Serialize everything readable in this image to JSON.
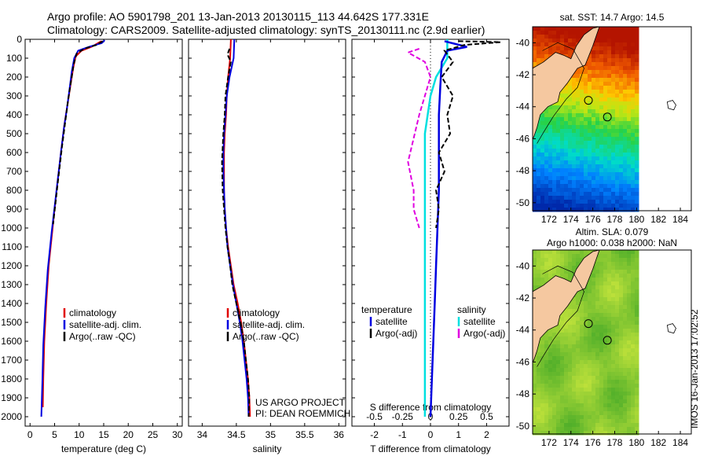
{
  "header": {
    "line1": "Argo profile: AO 5901798_201 13-Jan-2013 20130115_113 44.642S 177.331E",
    "line2": "Climatology: CARS2009. Satellite-adjusted climatology: synTS_20130111.nc (2.9d earlier)"
  },
  "colors": {
    "climatology": "#e00000",
    "satellite": "#0000e0",
    "argo": "#000000",
    "salinity_satellite": "#00e0e0",
    "salinity_argo": "#e000e0",
    "land": "#f5c8a0"
  },
  "chart_data": [
    {
      "type": "line",
      "xlabel": "temperature (deg C)",
      "ylabel": "",
      "xlim": [
        -1,
        31
      ],
      "ylim": [
        2050,
        0
      ],
      "xticks": [
        "0",
        "5",
        "10",
        "15",
        "20",
        "25",
        "30"
      ],
      "yticks": [
        "0",
        "100",
        "200",
        "300",
        "400",
        "500",
        "600",
        "700",
        "800",
        "900",
        "1000",
        "1100",
        "1200",
        "1300",
        "1400",
        "1500",
        "1600",
        "1700",
        "1800",
        "1900",
        "2000"
      ],
      "legend": {
        "placement": "lower-center",
        "entries": [
          "climatology",
          "satellite-adj. clim.",
          "Argo(..raw -QC)"
        ]
      },
      "series": [
        {
          "name": "climatology",
          "points": [
            [
              14.5,
              10
            ],
            [
              12.5,
              40
            ],
            [
              10.5,
              60
            ],
            [
              9.3,
              90
            ],
            [
              8.8,
              150
            ],
            [
              8.2,
              250
            ],
            [
              7.6,
              350
            ],
            [
              7.0,
              450
            ],
            [
              6.3,
              600
            ],
            [
              5.4,
              800
            ],
            [
              4.6,
              1000
            ],
            [
              3.8,
              1200
            ],
            [
              3.3,
              1400
            ],
            [
              2.9,
              1600
            ],
            [
              2.7,
              1800
            ],
            [
              2.6,
              1950
            ]
          ]
        },
        {
          "name": "satellite-adj. clim.",
          "points": [
            [
              15.2,
              5
            ],
            [
              14.6,
              20
            ],
            [
              12.0,
              40
            ],
            [
              9.8,
              60
            ],
            [
              9.0,
              100
            ],
            [
              8.5,
              170
            ],
            [
              8.0,
              270
            ],
            [
              7.5,
              370
            ],
            [
              6.9,
              470
            ],
            [
              6.2,
              620
            ],
            [
              5.3,
              820
            ],
            [
              4.4,
              1020
            ],
            [
              3.6,
              1220
            ],
            [
              3.1,
              1420
            ],
            [
              2.7,
              1620
            ],
            [
              2.5,
              1820
            ],
            [
              2.3,
              2000
            ]
          ]
        },
        {
          "name": "Argo(..raw -QC)",
          "points": [
            [
              14.8,
              10
            ],
            [
              13.5,
              30
            ],
            [
              11.0,
              50
            ],
            [
              9.5,
              75
            ],
            [
              8.9,
              130
            ],
            [
              8.3,
              230
            ],
            [
              7.7,
              330
            ],
            [
              7.2,
              430
            ],
            [
              6.5,
              570
            ],
            [
              5.6,
              770
            ],
            [
              4.7,
              980
            ]
          ]
        }
      ]
    },
    {
      "type": "line",
      "xlabel": "salinity",
      "ylabel": "",
      "xlim": [
        33.8,
        36.1
      ],
      "ylim": [
        2050,
        0
      ],
      "xticks": [
        "34",
        "34.5",
        "35",
        "35.5",
        "36"
      ],
      "legend": {
        "placement": "lower-center",
        "entries": [
          "climatology",
          "satellite-adj. clim.",
          "Argo(..raw -QC)"
        ]
      },
      "annotation": [
        "US ARGO PROJECT",
        "PI: DEAN ROEMMICH"
      ],
      "series": [
        {
          "name": "climatology",
          "points": [
            [
              34.42,
              0
            ],
            [
              34.41,
              100
            ],
            [
              34.38,
              200
            ],
            [
              34.36,
              300
            ],
            [
              34.35,
              400
            ],
            [
              34.33,
              500
            ],
            [
              34.32,
              600
            ],
            [
              34.32,
              700
            ],
            [
              34.32,
              800
            ],
            [
              34.33,
              900
            ],
            [
              34.35,
              1000
            ],
            [
              34.38,
              1100
            ],
            [
              34.42,
              1200
            ],
            [
              34.46,
              1300
            ],
            [
              34.52,
              1400
            ],
            [
              34.57,
              1500
            ],
            [
              34.61,
              1600
            ],
            [
              34.64,
              1700
            ],
            [
              34.67,
              1800
            ],
            [
              34.69,
              1900
            ],
            [
              34.7,
              2000
            ]
          ]
        },
        {
          "name": "satellite-adj. clim.",
          "points": [
            [
              34.47,
              0
            ],
            [
              34.46,
              100
            ],
            [
              34.4,
              200
            ],
            [
              34.36,
              300
            ],
            [
              34.34,
              400
            ],
            [
              34.32,
              500
            ],
            [
              34.31,
              600
            ],
            [
              34.31,
              700
            ],
            [
              34.32,
              800
            ],
            [
              34.33,
              900
            ],
            [
              34.35,
              1000
            ],
            [
              34.37,
              1100
            ],
            [
              34.41,
              1200
            ],
            [
              34.45,
              1300
            ],
            [
              34.5,
              1400
            ],
            [
              34.55,
              1500
            ],
            [
              34.59,
              1600
            ],
            [
              34.62,
              1700
            ],
            [
              34.65,
              1800
            ],
            [
              34.67,
              1900
            ],
            [
              34.68,
              2000
            ]
          ]
        },
        {
          "name": "Argo(..raw -QC)",
          "points": [
            [
              34.4,
              50
            ],
            [
              34.37,
              80
            ],
            [
              34.42,
              120
            ],
            [
              34.38,
              200
            ],
            [
              34.34,
              300
            ],
            [
              34.33,
              400
            ],
            [
              34.31,
              500
            ],
            [
              34.29,
              650
            ],
            [
              34.3,
              800
            ],
            [
              34.32,
              900
            ],
            [
              34.34,
              1000
            ],
            [
              34.37,
              1100
            ],
            [
              34.41,
              1200
            ],
            [
              34.44,
              1300
            ],
            [
              34.5,
              1400
            ],
            [
              34.56,
              1500
            ],
            [
              34.61,
              1600
            ],
            [
              34.64,
              1700
            ],
            [
              34.67,
              1800
            ],
            [
              34.69,
              1900
            ],
            [
              34.68,
              2000
            ]
          ]
        }
      ]
    },
    {
      "type": "line",
      "xlabel": "T difference from climatology",
      "xlabel_top": "S difference from climatology",
      "ylabel": "",
      "xlim": [
        -2.8,
        2.8
      ],
      "ylim": [
        2050,
        0
      ],
      "xticks": [
        "-2",
        "-1",
        "0",
        "1",
        "2"
      ],
      "xticks_top": [
        "-0.5",
        "-0.25",
        "0",
        "0.25",
        "0.5"
      ],
      "legend": {
        "placement": "lower-center",
        "entries": [
          {
            "group": "temperature",
            "items": [
              "satellite",
              "Argo(-adj)"
            ]
          },
          {
            "group": "salinity",
            "items": [
              "satellite",
              "Argo(-adj)"
            ]
          }
        ]
      },
      "series": [
        {
          "name": "satellite",
          "group": "temperature",
          "points": [
            [
              0.5,
              10
            ],
            [
              0.9,
              25
            ],
            [
              1.3,
              40
            ],
            [
              0.6,
              60
            ],
            [
              0.4,
              120
            ],
            [
              0.35,
              250
            ],
            [
              0.3,
              400
            ],
            [
              0.3,
              600
            ],
            [
              0.3,
              800
            ],
            [
              0.25,
              1000
            ],
            [
              0.2,
              1200
            ],
            [
              0.15,
              1400
            ],
            [
              0.1,
              1600
            ],
            [
              0.05,
              1800
            ],
            [
              0.0,
              2000
            ]
          ]
        },
        {
          "name": "Argo(-adj)",
          "group": "temperature",
          "points": [
            [
              1.0,
              10
            ],
            [
              2.5,
              15
            ],
            [
              1.2,
              30
            ],
            [
              0.5,
              60
            ],
            [
              0.8,
              120
            ],
            [
              0.4,
              200
            ],
            [
              0.8,
              300
            ],
            [
              0.6,
              400
            ],
            [
              0.7,
              500
            ],
            [
              0.3,
              600
            ],
            [
              0.5,
              700
            ],
            [
              0.2,
              800
            ],
            [
              0.3,
              900
            ],
            [
              0.2,
              1000
            ]
          ]
        },
        {
          "name": "satellite",
          "group": "salinity",
          "points": [
            [
              0.15,
              0
            ],
            [
              0.15,
              100
            ],
            [
              0.05,
              200
            ],
            [
              0.0,
              300
            ],
            [
              -0.05,
              500
            ],
            [
              -0.05,
              800
            ],
            [
              -0.05,
              1200
            ],
            [
              -0.05,
              1600
            ],
            [
              -0.05,
              2000
            ]
          ]
        },
        {
          "name": "Argo(-adj)",
          "group": "salinity",
          "points": [
            [
              -0.1,
              50
            ],
            [
              -0.2,
              70
            ],
            [
              -0.05,
              120
            ],
            [
              0.0,
              200
            ],
            [
              -0.1,
              400
            ],
            [
              -0.2,
              650
            ],
            [
              -0.15,
              800
            ],
            [
              -0.15,
              900
            ],
            [
              -0.1,
              1000
            ]
          ]
        }
      ]
    },
    {
      "type": "heatmap",
      "title": "sat. SST: 14.7  Argo: 14.5",
      "xlim": [
        170.5,
        185
      ],
      "ylim": [
        -50.5,
        -39
      ],
      "xticks": [
        "172",
        "174",
        "176",
        "178",
        "180",
        "182",
        "184"
      ],
      "yticks": [
        "-40",
        "-42",
        "-44",
        "-46",
        "-48",
        "-50"
      ],
      "data_xlim": [
        170.5,
        180
      ],
      "marker": {
        "lon": 177.331,
        "lat": -44.642
      }
    },
    {
      "type": "heatmap",
      "title": "Altim. SLA: 0.079",
      "subtitle": "Argo h1000: 0.038 h2000: NaN",
      "xlim": [
        170.5,
        185
      ],
      "ylim": [
        -50.5,
        -39
      ],
      "xticks": [
        "172",
        "174",
        "176",
        "178",
        "180",
        "182",
        "184"
      ],
      "yticks": [
        "-40",
        "-42",
        "-44",
        "-46",
        "-48",
        "-50"
      ],
      "data_xlim": [
        170.5,
        180
      ],
      "marker": {
        "lon": 177.331,
        "lat": -44.642
      }
    }
  ],
  "footer": {
    "stamp": "IMOS 16-Jan-2013 17:02:52"
  }
}
